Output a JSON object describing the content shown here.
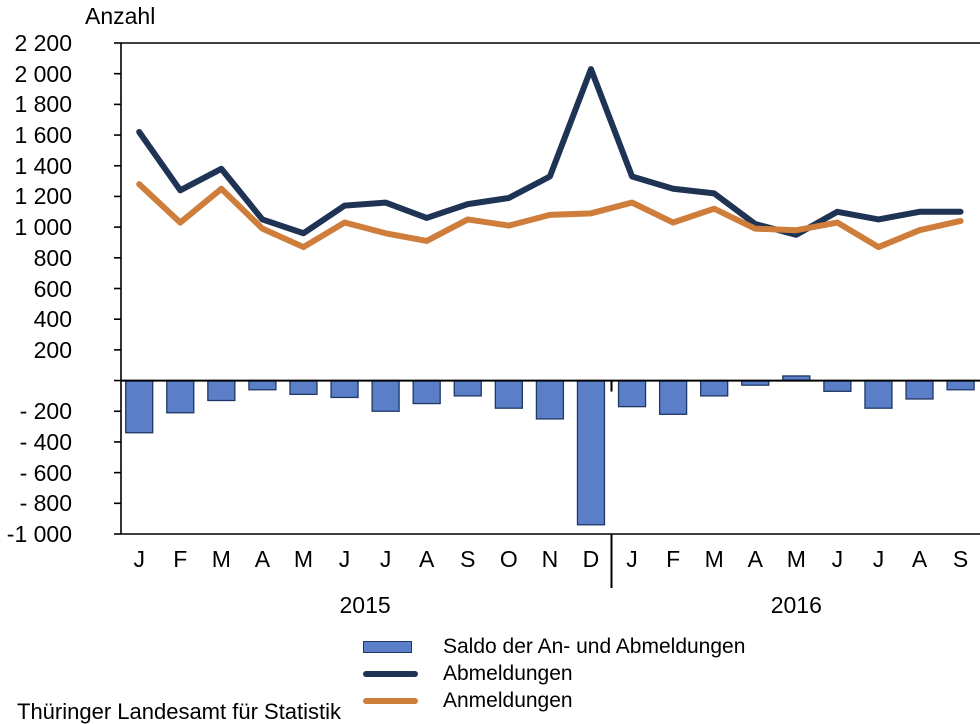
{
  "title": "Anzahl",
  "footer": "Thüringer Landesamt für Statistik",
  "colors": {
    "saldo_fill": "#5B7EC9",
    "saldo_border": "#1F3864",
    "abmeldungen": "#1F3355",
    "anmeldungen": "#CE7D3B",
    "axis": "#000000"
  },
  "legend": {
    "saldo": "Saldo der An- und Abmeldungen",
    "abmeldungen": "Abmeldungen",
    "anmeldungen": "Anmeldungen"
  },
  "x_axis": {
    "years": [
      {
        "label": "2015",
        "start": 0,
        "end": 11
      },
      {
        "label": "2016",
        "start": 12,
        "end": 20
      }
    ]
  },
  "y_axis": {
    "ticks": [
      {
        "value": 2200,
        "label": "2 200"
      },
      {
        "value": 2000,
        "label": "2 000"
      },
      {
        "value": 1800,
        "label": "1 800"
      },
      {
        "value": 1600,
        "label": "1 600"
      },
      {
        "value": 1400,
        "label": "1 400"
      },
      {
        "value": 1200,
        "label": "1 200"
      },
      {
        "value": 1000,
        "label": "1 000"
      },
      {
        "value": 800,
        "label": "800"
      },
      {
        "value": 600,
        "label": "600"
      },
      {
        "value": 400,
        "label": "400"
      },
      {
        "value": 200,
        "label": "200"
      },
      {
        "value": 0,
        "label": ""
      },
      {
        "value": -200,
        "label": "- 200"
      },
      {
        "value": -400,
        "label": "- 400"
      },
      {
        "value": -600,
        "label": "- 600"
      },
      {
        "value": -800,
        "label": "- 800"
      },
      {
        "value": -1000,
        "label": "-1 000"
      }
    ]
  },
  "chart_data": {
    "type": "combo-bar-line",
    "title": "Anzahl",
    "ylabel": "Anzahl",
    "ylim": [
      -1000,
      2200
    ],
    "grid": false,
    "legend_position": "bottom",
    "categories": [
      "J",
      "F",
      "M",
      "A",
      "M",
      "J",
      "J",
      "A",
      "S",
      "O",
      "N",
      "D",
      "J",
      "F",
      "M",
      "A",
      "M",
      "J",
      "J",
      "A",
      "S"
    ],
    "category_years": [
      "2015",
      "2015",
      "2015",
      "2015",
      "2015",
      "2015",
      "2015",
      "2015",
      "2015",
      "2015",
      "2015",
      "2015",
      "2016",
      "2016",
      "2016",
      "2016",
      "2016",
      "2016",
      "2016",
      "2016",
      "2016"
    ],
    "series": [
      {
        "name": "Saldo der An- und Abmeldungen",
        "type": "bar",
        "values": [
          -340,
          -210,
          -130,
          -60,
          -90,
          -110,
          -200,
          -150,
          -100,
          -180,
          -250,
          -940,
          -170,
          -220,
          -100,
          -30,
          30,
          -70,
          -180,
          -120,
          -60
        ]
      },
      {
        "name": "Abmeldungen",
        "type": "line",
        "values": [
          1620,
          1240,
          1380,
          1050,
          960,
          1140,
          1160,
          1060,
          1150,
          1190,
          1330,
          2030,
          1330,
          1250,
          1220,
          1020,
          950,
          1100,
          1050,
          1100,
          1100
        ]
      },
      {
        "name": "Anmeldungen",
        "type": "line",
        "values": [
          1280,
          1030,
          1250,
          990,
          870,
          1030,
          960,
          910,
          1050,
          1010,
          1080,
          1090,
          1160,
          1030,
          1120,
          990,
          980,
          1030,
          870,
          980,
          1040
        ]
      }
    ]
  }
}
